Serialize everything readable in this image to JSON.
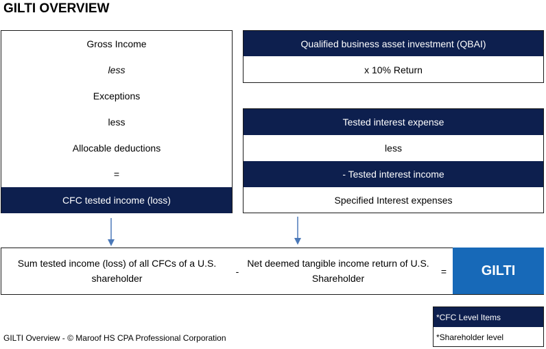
{
  "title": "GILTI OVERVIEW",
  "left_box": {
    "items": [
      "Gross Income",
      "less",
      "Exceptions",
      "less",
      "Allocable deductions",
      "="
    ],
    "result": "CFC tested income (loss)"
  },
  "qbai_box": {
    "header": "Qualified business asset investment (QBAI)",
    "row": "x 10% Return"
  },
  "interest_box": {
    "row1": "Tested interest expense",
    "row2": "less",
    "row3": "- Tested interest income",
    "row4": "Specified Interest expenses"
  },
  "bottom": {
    "left_text": "Sum  tested income (loss) of all CFCs of a U.S. shareholder",
    "minus": "-",
    "mid_text": "Net deemed tangible income return of U.S. Shareholder",
    "equals": "=",
    "result": "GILTI"
  },
  "legend": {
    "cfc": "*CFC Level Items",
    "shareholder": "*Shareholder level"
  },
  "footer": "GILTI Overview - © Maroof HS CPA Professional Corporation",
  "colors": {
    "navy": "#0d1f4e",
    "accent_blue": "#1769b8",
    "arrow": "#4a78b8"
  }
}
